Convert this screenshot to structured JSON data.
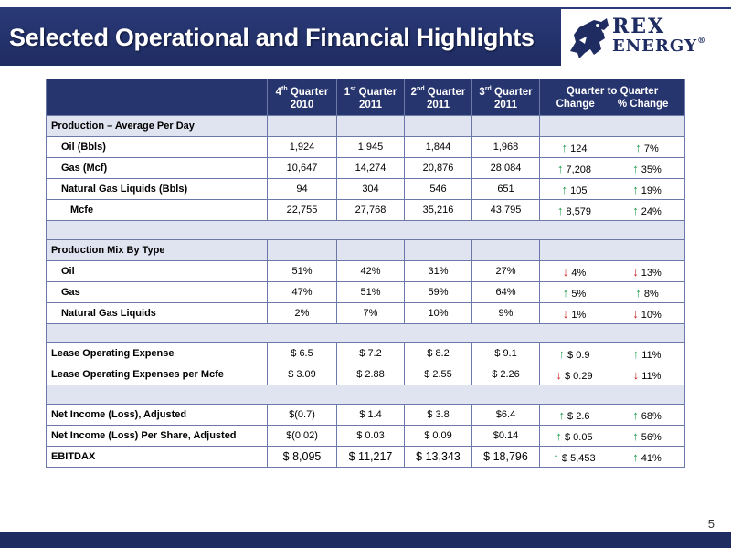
{
  "header": {
    "title": "Selected Operational and Financial Highlights",
    "logo": {
      "line1": "REX",
      "line2": "ENERGY",
      "mark": "®"
    }
  },
  "table": {
    "columns": [
      {
        "line1": "4",
        "sup": "th",
        "rest": " Quarter",
        "line2": "2010"
      },
      {
        "line1": "1",
        "sup": "st",
        "rest": " Quarter",
        "line2": "2011"
      },
      {
        "line1": "2",
        "sup": "nd",
        "rest": " Quarter",
        "line2": "2011"
      },
      {
        "line1": "3",
        "sup": "rd",
        "rest": " Quarter",
        "line2": "2011"
      }
    ],
    "change_header": {
      "title": "Quarter to Quarter",
      "change": "Change",
      "pct": "% Change"
    },
    "production_section": "Production – Average Per Day",
    "production_rows": [
      {
        "label": "Oil (Bbls)",
        "q4_2010": "1,924",
        "q1_2011": "1,945",
        "q2_2011": "1,844",
        "q3_2011": "1,968",
        "chg_dir": "up",
        "chg": "124",
        "pct_dir": "up",
        "pct": "7%"
      },
      {
        "label": "Gas (Mcf)",
        "q4_2010": "10,647",
        "q1_2011": "14,274",
        "q2_2011": "20,876",
        "q3_2011": "28,084",
        "chg_dir": "up",
        "chg": "7,208",
        "pct_dir": "up",
        "pct": "35%"
      },
      {
        "label": "Natural Gas Liquids (Bbls)",
        "q4_2010": "94",
        "q1_2011": "304",
        "q2_2011": "546",
        "q3_2011": "651",
        "chg_dir": "up",
        "chg": "105",
        "pct_dir": "up",
        "pct": "19%"
      },
      {
        "label": "Mcfe",
        "q4_2010": "22,755",
        "q1_2011": "27,768",
        "q2_2011": "35,216",
        "q3_2011": "43,795",
        "chg_dir": "up",
        "chg": "8,579",
        "pct_dir": "up",
        "pct": "24%"
      }
    ],
    "mix_section": "Production Mix By Type",
    "mix_rows": [
      {
        "label": "Oil",
        "q4_2010": "51%",
        "q1_2011": "42%",
        "q2_2011": "31%",
        "q3_2011": "27%",
        "chg_dir": "down",
        "chg": "4%",
        "pct_dir": "down",
        "pct": "13%"
      },
      {
        "label": "Gas",
        "q4_2010": "47%",
        "q1_2011": "51%",
        "q2_2011": "59%",
        "q3_2011": "64%",
        "chg_dir": "up",
        "chg": "5%",
        "pct_dir": "up",
        "pct": "8%"
      },
      {
        "label": "Natural Gas Liquids",
        "q4_2010": "2%",
        "q1_2011": "7%",
        "q2_2011": "10%",
        "q3_2011": "9%",
        "chg_dir": "down",
        "chg": "1%",
        "pct_dir": "down",
        "pct": "10%"
      }
    ],
    "loe_rows": [
      {
        "label": "Lease Operating Expense",
        "q4_2010": "$ 6.5",
        "q1_2011": "$ 7.2",
        "q2_2011": "$ 8.2",
        "q3_2011": "$ 9.1",
        "chg_dir": "up",
        "chg": "$ 0.9",
        "pct_dir": "up",
        "pct": "11%"
      },
      {
        "label": "Lease Operating Expenses per Mcfe",
        "q4_2010": "$ 3.09",
        "q1_2011": "$ 2.88",
        "q2_2011": "$ 2.55",
        "q3_2011": "$ 2.26",
        "chg_dir": "down",
        "chg": "$ 0.29",
        "pct_dir": "down",
        "pct": "11%"
      }
    ],
    "income_rows": [
      {
        "label": "Net Income (Loss), Adjusted",
        "q4_2010": "$(0.7)",
        "q1_2011": "$ 1.4",
        "q2_2011": "$ 3.8",
        "q3_2011": "$6.4",
        "chg_dir": "up",
        "chg": "$ 2.6",
        "pct_dir": "up",
        "pct": "68%"
      },
      {
        "label": "Net  Income (Loss) Per Share, Adjusted",
        "q4_2010": "$(0.02)",
        "q1_2011": "$ 0.03",
        "q2_2011": "$ 0.09",
        "q3_2011": "$0.14",
        "chg_dir": "up",
        "chg": "$ 0.05",
        "pct_dir": "up",
        "pct": "56%"
      },
      {
        "label": "EBITDAX",
        "q4_2010": "$ 8,095",
        "q1_2011": "$ 11,217",
        "q2_2011": "$ 13,343",
        "q3_2011": "$ 18,796",
        "chg_dir": "up",
        "chg": "$ 5,453",
        "pct_dir": "up",
        "pct": "41%"
      }
    ]
  },
  "footer": {
    "page_number": "5"
  },
  "colors": {
    "navy": "#1f2c62",
    "header_row": "#27356e",
    "section_fill": "#e0e3f0",
    "up_arrow": "#1d9a4a",
    "down_arrow": "#cc2222"
  },
  "icons": {
    "up": "up-arrow-icon",
    "down": "down-arrow-icon",
    "logo": "rex-dinosaur-logo"
  }
}
